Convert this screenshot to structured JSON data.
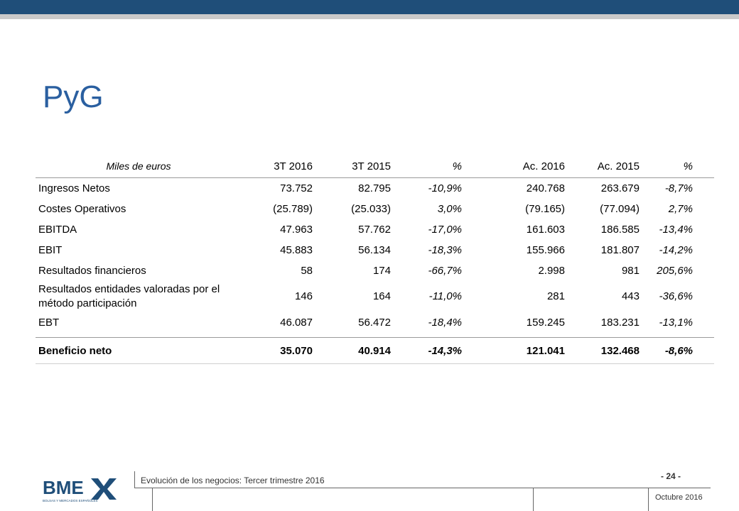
{
  "title": "PyG",
  "table": {
    "unit": "Miles de euros",
    "headers": [
      "3T 2016",
      "3T 2015",
      "%",
      "Ac. 2016",
      "Ac. 2015",
      "%"
    ],
    "rows": [
      {
        "label": "Ingresos Netos",
        "v1": "73.752",
        "v2": "82.795",
        "p1": "-10,9%",
        "v3": "240.768",
        "v4": "263.679",
        "p2": "-8,7%"
      },
      {
        "label": "Costes Operativos",
        "v1": "(25.789)",
        "v2": "(25.033)",
        "p1": "3,0%",
        "v3": "(79.165)",
        "v4": "(77.094)",
        "p2": "2,7%"
      },
      {
        "label": "EBITDA",
        "v1": "47.963",
        "v2": "57.762",
        "p1": "-17,0%",
        "v3": "161.603",
        "v4": "186.585",
        "p2": "-13,4%"
      },
      {
        "label": "EBIT",
        "v1": "45.883",
        "v2": "56.134",
        "p1": "-18,3%",
        "v3": "155.966",
        "v4": "181.807",
        "p2": "-14,2%"
      },
      {
        "label": "Resultados financieros",
        "v1": "58",
        "v2": "174",
        "p1": "-66,7%",
        "v3": "2.998",
        "v4": "981",
        "p2": "205,6%"
      },
      {
        "label_line1": "Resultados entidades valoradas por el",
        "label_line2": "método participación",
        "v1": "146",
        "v2": "164",
        "p1": "-11,0%",
        "v3": "281",
        "v4": "443",
        "p2": "-36,6%"
      },
      {
        "label": "EBT",
        "v1": "46.087",
        "v2": "56.472",
        "p1": "-18,4%",
        "v3": "159.245",
        "v4": "183.231",
        "p2": "-13,1%"
      }
    ],
    "total": {
      "label": "Beneficio neto",
      "v1": "35.070",
      "v2": "40.914",
      "p1": "-14,3%",
      "v3": "121.041",
      "v4": "132.468",
      "p2": "-8,6%"
    }
  },
  "footer": {
    "doc_title": "Evolución de los negocios: Tercer trimestre 2016",
    "page": "- 24 -",
    "date": "Octubre 2016",
    "logo_text": "BME",
    "logo_subtext": "BOLSAS Y MERCADOS ESPAÑOLES"
  },
  "colors": {
    "top_bar": "#1f4e79",
    "title": "#2a5fa0"
  }
}
